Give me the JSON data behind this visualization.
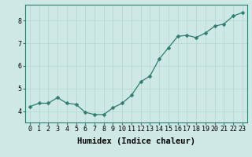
{
  "x": [
    0,
    1,
    2,
    3,
    4,
    5,
    6,
    7,
    8,
    9,
    10,
    11,
    12,
    13,
    14,
    15,
    16,
    17,
    18,
    19,
    20,
    21,
    22,
    23
  ],
  "y": [
    4.2,
    4.35,
    4.35,
    4.6,
    4.35,
    4.3,
    3.95,
    3.85,
    3.85,
    4.15,
    4.35,
    4.7,
    5.3,
    5.55,
    6.3,
    6.8,
    7.3,
    7.35,
    7.25,
    7.45,
    7.75,
    7.85,
    8.2,
    8.35
  ],
  "line_color": "#2e7d6e",
  "marker": "D",
  "marker_size": 2.5,
  "bg_color": "#cde8e5",
  "grid_color": "#b8d8d5",
  "xlabel": "Humidex (Indice chaleur)",
  "xlabel_fontsize": 7.5,
  "yticks": [
    4,
    5,
    6,
    7,
    8
  ],
  "xtick_labels": [
    "0",
    "1",
    "2",
    "3",
    "4",
    "5",
    "6",
    "7",
    "8",
    "9",
    "10",
    "11",
    "12",
    "13",
    "14",
    "15",
    "16",
    "17",
    "18",
    "19",
    "20",
    "21",
    "22",
    "23"
  ],
  "ylim": [
    3.5,
    8.7
  ],
  "xlim": [
    -0.5,
    23.5
  ],
  "tick_fontsize": 6,
  "spine_color": "#2e7d6e"
}
